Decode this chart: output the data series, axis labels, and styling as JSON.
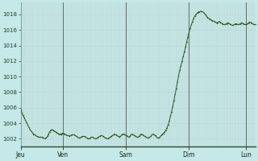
{
  "bg_color": "#c5e8e8",
  "line_color": "#2a5c20",
  "dot_color": "#2a5c20",
  "grid_h_color": "#b8d8d8",
  "grid_v_color": "#c0d4d4",
  "day_line_color": "#607060",
  "ylim": [
    1001.0,
    1019.5
  ],
  "yticks": [
    1002,
    1004,
    1006,
    1008,
    1010,
    1012,
    1014,
    1016,
    1018
  ],
  "xlabel_ticks": [
    "Jeu",
    "Ven",
    "Sam",
    "Dim",
    "Lun"
  ],
  "pressure_data": [
    1005.8,
    1005.4,
    1005.0,
    1004.7,
    1004.4,
    1004.1,
    1003.8,
    1003.5,
    1003.2,
    1003.0,
    1002.8,
    1002.6,
    1002.5,
    1002.4,
    1002.3,
    1002.25,
    1002.2,
    1002.2,
    1002.2,
    1002.1,
    1002.1,
    1002.0,
    1002.1,
    1002.3,
    1002.6,
    1002.9,
    1003.1,
    1003.2,
    1003.1,
    1003.0,
    1002.9,
    1002.8,
    1002.7,
    1002.6,
    1002.6,
    1002.6,
    1002.7,
    1002.7,
    1002.6,
    1002.5,
    1002.4,
    1002.4,
    1002.3,
    1002.4,
    1002.5,
    1002.5,
    1002.5,
    1002.4,
    1002.3,
    1002.2,
    1002.1,
    1002.1,
    1002.2,
    1002.3,
    1002.3,
    1002.3,
    1002.2,
    1002.1,
    1002.0,
    1002.0,
    1002.1,
    1002.2,
    1002.2,
    1002.1,
    1002.0,
    1002.0,
    1002.1,
    1002.2,
    1002.3,
    1002.4,
    1002.4,
    1002.3,
    1002.2,
    1002.1,
    1002.0,
    1002.0,
    1002.1,
    1002.2,
    1002.3,
    1002.4,
    1002.5,
    1002.6,
    1002.5,
    1002.4,
    1002.3,
    1002.2,
    1002.3,
    1002.5,
    1002.6,
    1002.6,
    1002.5,
    1002.4,
    1002.3,
    1002.2,
    1002.3,
    1002.5,
    1002.6,
    1002.5,
    1002.4,
    1002.3,
    1002.2,
    1002.2,
    1002.3,
    1002.5,
    1002.6,
    1002.5,
    1002.4,
    1002.3,
    1002.2,
    1002.1,
    1002.1,
    1002.2,
    1002.3,
    1002.5,
    1002.6,
    1002.5,
    1002.4,
    1002.2,
    1002.1,
    1002.1,
    1002.2,
    1002.4,
    1002.6,
    1002.7,
    1002.9,
    1003.1,
    1003.4,
    1003.8,
    1004.3,
    1004.9,
    1005.5,
    1006.2,
    1006.9,
    1007.7,
    1008.5,
    1009.3,
    1010.1,
    1010.8,
    1011.4,
    1012.0,
    1012.6,
    1013.2,
    1013.8,
    1014.5,
    1015.1,
    1015.7,
    1016.2,
    1016.7,
    1017.1,
    1017.5,
    1017.8,
    1018.0,
    1018.2,
    1018.3,
    1018.35,
    1018.4,
    1018.4,
    1018.3,
    1018.2,
    1018.0,
    1017.8,
    1017.6,
    1017.5,
    1017.4,
    1017.3,
    1017.2,
    1017.15,
    1017.1,
    1017.0,
    1016.9,
    1017.0,
    1017.1,
    1017.0,
    1016.9,
    1016.8,
    1016.7,
    1016.7,
    1016.8,
    1016.9,
    1016.9,
    1016.8,
    1016.7,
    1016.6,
    1016.6,
    1016.7,
    1016.8,
    1016.8,
    1016.7,
    1016.7,
    1016.8,
    1016.9,
    1016.9,
    1016.8,
    1016.7,
    1016.7,
    1016.8,
    1016.9,
    1017.0,
    1017.0,
    1016.9,
    1016.8,
    1016.7,
    1016.7
  ],
  "n_days": 5,
  "hours_per_day": 40
}
